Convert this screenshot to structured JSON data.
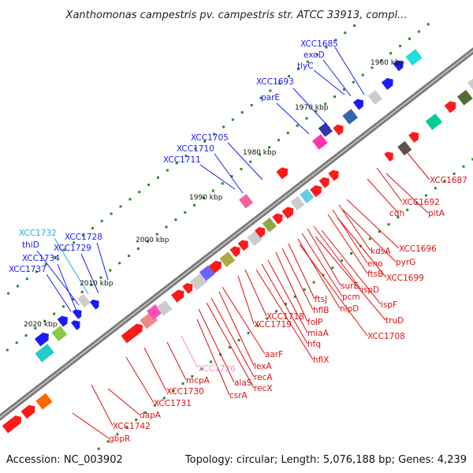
{
  "title": "Xanthomonas campestris pv. campestris str. ATCC 33913, compl...",
  "footer": {
    "accession": "Accession: NC_003902",
    "summary": "Topology: circular; Length: 5,076,188 bp; Genes: 4,239"
  },
  "scale_labels": [
    "1960 kbp",
    "1970 kbp",
    "1980 kbp",
    "1990 kbp",
    "2000 kbp",
    "2010 kbp",
    "2020 kbp"
  ],
  "colors": {
    "forward_strand": "#1a1aff",
    "reverse_strand": "#ff1a1a",
    "rna": "#99ddff",
    "highlight": "#ff99cc",
    "backbone": "#888888",
    "dots": "#2a8a2a"
  },
  "upper_labels": [
    {
      "text": "XCC1685",
      "color": "#1a1aff"
    },
    {
      "text": "exoD",
      "color": "#1a1aff"
    },
    {
      "text": "tlyC",
      "color": "#1a1aff"
    },
    {
      "text": "XCC1693",
      "color": "#1a1aff"
    },
    {
      "text": "parE",
      "color": "#1a1aff"
    },
    {
      "text": "XCC1705",
      "color": "#1a1aff"
    },
    {
      "text": "XCC1710",
      "color": "#1a1aff"
    },
    {
      "text": "XCC1711",
      "color": "#1a1aff"
    },
    {
      "text": "XCC1732",
      "color": "#22aaee"
    },
    {
      "text": "XCC1728",
      "color": "#1a1aff"
    },
    {
      "text": "thiD",
      "color": "#1a1aff"
    },
    {
      "text": "XCC1729",
      "color": "#1a1aff"
    },
    {
      "text": "XCC1734",
      "color": "#1a1aff"
    },
    {
      "text": "XCC1737",
      "color": "#1a1aff"
    }
  ],
  "lower_labels": [
    {
      "text": "XCC1687",
      "color": "#e01010"
    },
    {
      "text": "XCC1692",
      "color": "#e01010"
    },
    {
      "text": "pitA",
      "color": "#e01010"
    },
    {
      "text": "cdh",
      "color": "#e01010"
    },
    {
      "text": "XCC1696",
      "color": "#e01010"
    },
    {
      "text": "kdsA",
      "color": "#e01010"
    },
    {
      "text": "pyrG",
      "color": "#e01010"
    },
    {
      "text": "eno",
      "color": "#e01010"
    },
    {
      "text": "ftsB",
      "color": "#e01010"
    },
    {
      "text": "XCC1699",
      "color": "#e01010"
    },
    {
      "text": "ispD",
      "color": "#e01010"
    },
    {
      "text": "surE",
      "color": "#e01010"
    },
    {
      "text": "ispF",
      "color": "#e01010"
    },
    {
      "text": "pcm",
      "color": "#e01010"
    },
    {
      "text": "nlpD",
      "color": "#e01010"
    },
    {
      "text": "truD",
      "color": "#e01010"
    },
    {
      "text": "ftsJ",
      "color": "#e01010"
    },
    {
      "text": "hflB",
      "color": "#e01010"
    },
    {
      "text": "XCC1708",
      "color": "#e01010"
    },
    {
      "text": "folP",
      "color": "#e01010"
    },
    {
      "text": "XCC1718",
      "color": "#e01010"
    },
    {
      "text": "miaA",
      "color": "#e01010"
    },
    {
      "text": "XCC1719",
      "color": "#e01010"
    },
    {
      "text": "hfq",
      "color": "#e01010"
    },
    {
      "text": "hflX",
      "color": "#e01010"
    },
    {
      "text": "aarF",
      "color": "#e01010"
    },
    {
      "text": "lexA",
      "color": "#e01010"
    },
    {
      "text": "XCC1726",
      "color": "#ff88cc"
    },
    {
      "text": "recA",
      "color": "#e01010"
    },
    {
      "text": "mcpA",
      "color": "#e01010"
    },
    {
      "text": "alaS",
      "color": "#e01010"
    },
    {
      "text": "recX",
      "color": "#e01010"
    },
    {
      "text": "XCC1730",
      "color": "#e01010"
    },
    {
      "text": "csrA",
      "color": "#e01010"
    },
    {
      "text": "XCC1731",
      "color": "#e01010"
    },
    {
      "text": "dapA",
      "color": "#e01010"
    },
    {
      "text": "XCC1742",
      "color": "#e01010"
    },
    {
      "text": "gbpR",
      "color": "#e01010"
    }
  ]
}
